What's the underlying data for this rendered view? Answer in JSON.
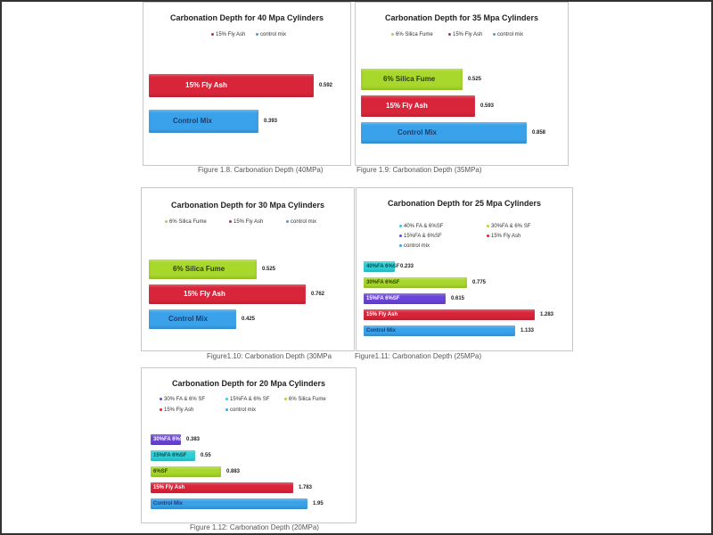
{
  "colors": {
    "red": "#d9253a",
    "blue": "#3aa2ea",
    "green": "#a8d82c",
    "purple": "#6a44d8",
    "cyan": "#2fd0d8"
  },
  "chart_data": [
    {
      "type": "bar",
      "title": "Carbonation Depth for 40 Mpa Cylinders",
      "legend": [
        {
          "name": "15% Fly Ash",
          "color": "#d9253a"
        },
        {
          "name": "control mix",
          "color": "#3aa2ea"
        }
      ],
      "categories": [
        "15% Fly Ash",
        "Control Mix"
      ],
      "values": [
        0.592,
        0.393
      ],
      "value_labels": [
        "0.592",
        "0.393"
      ],
      "colors": [
        "#d9253a",
        "#3aa2ea"
      ],
      "label_colors": [
        "#ffffff",
        "#1d3e6e"
      ],
      "xlim": [
        0,
        0.6
      ]
    },
    {
      "type": "bar",
      "title": "Carbonation Depth for 35 Mpa Cylinders",
      "legend": [
        {
          "name": "6% Silica Fume",
          "color": "#a8d82c"
        },
        {
          "name": "15% Fly Ash",
          "color": "#d9253a"
        },
        {
          "name": "control mix",
          "color": "#3aa2ea"
        }
      ],
      "categories": [
        "6% Silica Fume",
        "15% Fly Ash",
        "Control Mix"
      ],
      "values": [
        0.525,
        0.593,
        0.858
      ],
      "value_labels": [
        "0.525",
        "0.593",
        "0.858"
      ],
      "colors": [
        "#a8d82c",
        "#d9253a",
        "#3aa2ea"
      ],
      "label_colors": [
        "#2f3d10",
        "#ffffff",
        "#1d3e6e"
      ],
      "xlim": [
        0,
        0.9
      ]
    },
    {
      "type": "bar",
      "title": "Carbonation Depth for 30 Mpa Cylinders",
      "legend": [
        {
          "name": "6% Silica Fume",
          "color": "#a8d82c"
        },
        {
          "name": "15% Fly Ash",
          "color": "#d9253a"
        },
        {
          "name": "control mix",
          "color": "#3aa2ea"
        }
      ],
      "categories": [
        "6% Silica Fume",
        "15% Fly Ash",
        "Control Mix"
      ],
      "values": [
        0.525,
        0.762,
        0.425
      ],
      "value_labels": [
        "0.525",
        "0.762",
        "0.425"
      ],
      "colors": [
        "#a8d82c",
        "#d9253a",
        "#3aa2ea"
      ],
      "label_colors": [
        "#2f3d10",
        "#ffffff",
        "#1d3e6e"
      ],
      "xlim": [
        0,
        0.8
      ]
    },
    {
      "type": "bar",
      "title": "Carbonation Depth for 25 Mpa Cylinders",
      "legend": [
        {
          "name": "40% FA & 6%SF",
          "color": "#2fd0d8"
        },
        {
          "name": "30%FA & 6% SF",
          "color": "#a8d82c"
        },
        {
          "name": "15%FA & 6%SF",
          "color": "#6a44d8"
        },
        {
          "name": "15% Fly Ash",
          "color": "#d9253a"
        },
        {
          "name": "control mix",
          "color": "#3aa2ea"
        }
      ],
      "categories": [
        "40%FA 6%SF",
        "30%FA 6%SF",
        "15%FA 6%SF",
        "15% Fly Ash",
        "Control Mix"
      ],
      "values": [
        0.233,
        0.775,
        0.615,
        1.283,
        1.133
      ],
      "value_labels": [
        "0.233",
        "0.775",
        "0.615",
        "1.283",
        "1.133"
      ],
      "colors": [
        "#2fd0d8",
        "#a8d82c",
        "#6a44d8",
        "#d9253a",
        "#3aa2ea"
      ],
      "label_colors": [
        "#114a4e",
        "#2f3d10",
        "#ffffff",
        "#ffffff",
        "#1d3e6e"
      ],
      "xlim": [
        0,
        1.3
      ]
    },
    {
      "type": "bar",
      "title": "Carbonation Depth for 20 Mpa Cylinders",
      "legend": [
        {
          "name": "30% FA & 6% SF",
          "color": "#6a44d8"
        },
        {
          "name": "15%FA & 6% SF",
          "color": "#2fd0d8"
        },
        {
          "name": "6% Silica Fume",
          "color": "#a8d82c"
        },
        {
          "name": "15% Fly Ash",
          "color": "#d9253a"
        },
        {
          "name": "control mix",
          "color": "#3aa2ea"
        }
      ],
      "categories": [
        "30%FA 6%SF",
        "15%FA 6%SF",
        "6%SF",
        "15% Fly Ash",
        "Control Mix"
      ],
      "values": [
        0.383,
        0.55,
        0.883,
        1.783,
        1.95
      ],
      "value_labels": [
        "0.383",
        "0.55",
        "0.883",
        "1.783",
        "1.95"
      ],
      "colors": [
        "#6a44d8",
        "#2fd0d8",
        "#a8d82c",
        "#d9253a",
        "#3aa2ea"
      ],
      "label_colors": [
        "#ffffff",
        "#114a4e",
        "#2f3d10",
        "#ffffff",
        "#1d3e6e"
      ],
      "xlim": [
        0,
        2.0
      ]
    }
  ],
  "captions": [
    "Figure 1.8. Carbonation Depth (40MPa)",
    "Figure 1.9: Carbonation Depth (35MPa)",
    "Figure1.10: Carbonation Depth (30MPa",
    "Figure1.11: Carbonation Depth (25MPa)",
    "Figure 1.12: Carbonation Depth (20MPa)"
  ]
}
